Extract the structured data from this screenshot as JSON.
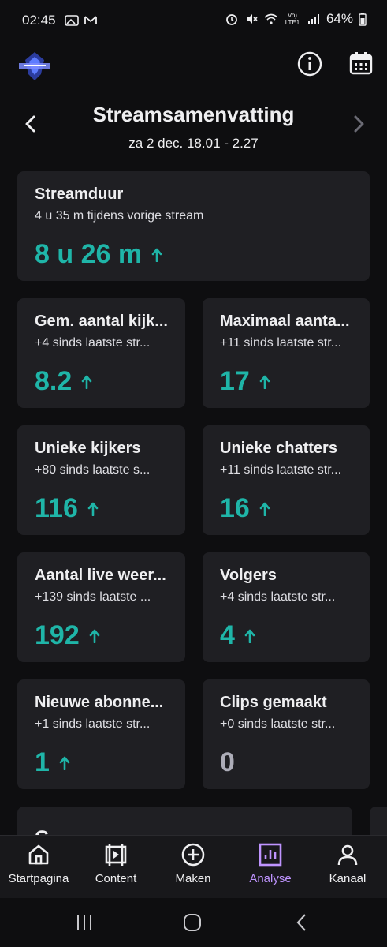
{
  "status_bar": {
    "time": "02:45",
    "network_label": "Vo) LTE1",
    "battery": "64%",
    "icons": [
      "gallery-icon",
      "gmail-icon",
      "alarm-icon",
      "mute-icon",
      "wifi-icon",
      "signal-icon",
      "battery-icon"
    ]
  },
  "header": {
    "logo_icon": "channel-logo",
    "info_icon": "info-icon",
    "calendar_icon": "calendar-icon"
  },
  "summary": {
    "title": "Streamsamenvatting",
    "date_range": "za 2 dec. 18.01 - 2.27"
  },
  "stream_duration": {
    "title": "Streamduur",
    "subtitle": "4 u 35 m tijdens vorige stream",
    "value": "8 u 26 m"
  },
  "stats": [
    {
      "title": "Gem. aantal kijk...",
      "subtitle": "+4 sinds laatste str...",
      "value": "8.2",
      "trend": "up"
    },
    {
      "title": "Maximaal aanta...",
      "subtitle": "+11 sinds laatste str...",
      "value": "17",
      "trend": "up"
    },
    {
      "title": "Unieke kijkers",
      "subtitle": "+80 sinds laatste s...",
      "value": "116",
      "trend": "up"
    },
    {
      "title": "Unieke chatters",
      "subtitle": "+11 sinds laatste str...",
      "value": "16",
      "trend": "up"
    },
    {
      "title": "Aantal live weer...",
      "subtitle": "+139 sinds laatste ...",
      "value": "192",
      "trend": "up"
    },
    {
      "title": "Volgers",
      "subtitle": "+4 sinds laatste str...",
      "value": "4",
      "trend": "up"
    },
    {
      "title": "Nieuwe abonne...",
      "subtitle": "+1 sinds laatste str...",
      "value": "1",
      "trend": "up"
    },
    {
      "title": "Clips gemaakt",
      "subtitle": "+0 sinds laatste str...",
      "value": "0",
      "trend": "none"
    }
  ],
  "next_section": {
    "title": "G"
  },
  "nav": {
    "items": [
      {
        "label": "Startpagina",
        "icon": "home-icon"
      },
      {
        "label": "Content",
        "icon": "content-icon"
      },
      {
        "label": "Maken",
        "icon": "plus-circle-icon"
      },
      {
        "label": "Analyse",
        "icon": "analytics-icon",
        "active": true
      },
      {
        "label": "Kanaal",
        "icon": "profile-icon"
      }
    ]
  },
  "colors": {
    "accent_teal": "#1fb5a8",
    "active_purple": "#bf94ff",
    "card_bg": "#1f1f23",
    "bg": "#0e0e10"
  }
}
